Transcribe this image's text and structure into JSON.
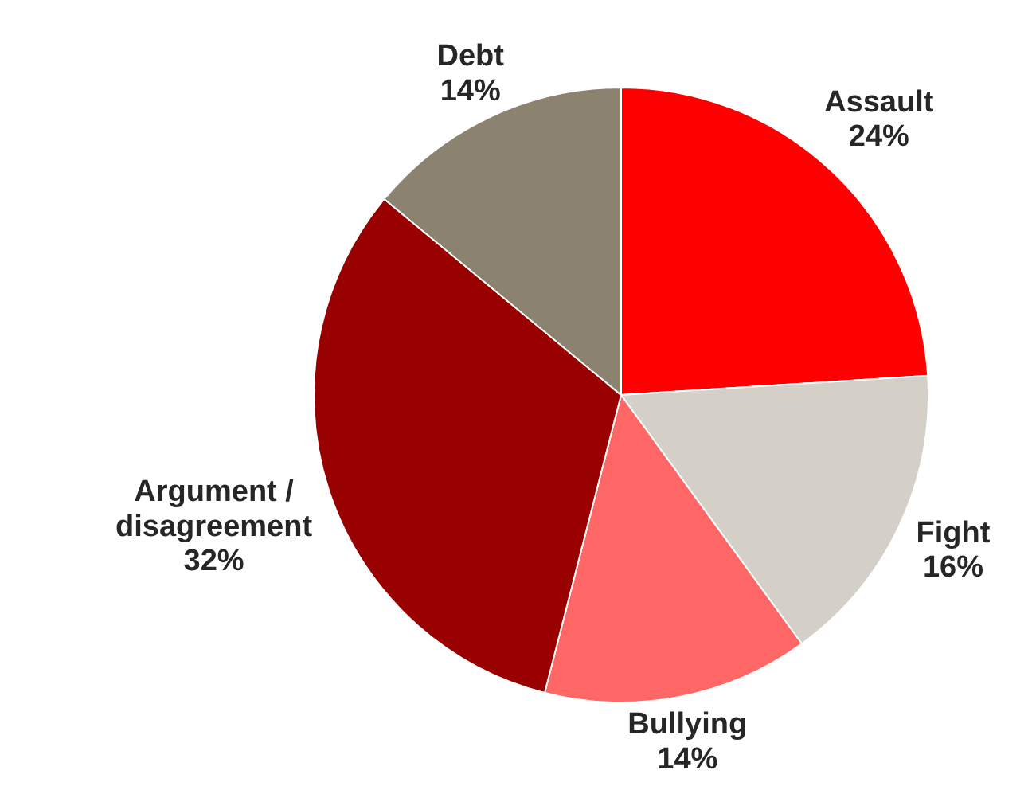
{
  "chart_data": {
    "type": "pie",
    "categories": [
      "Assault",
      "Fight",
      "Bullying",
      "Argument / disagreement",
      "Debt"
    ],
    "values": [
      24,
      16,
      14,
      32,
      14
    ],
    "colors": [
      "#ff0000",
      "#d4d0c8",
      "#ff6666",
      "#990000",
      "#8b8270"
    ],
    "value_labels": [
      "24%",
      "16%",
      "14%",
      "32%",
      "14%"
    ]
  }
}
